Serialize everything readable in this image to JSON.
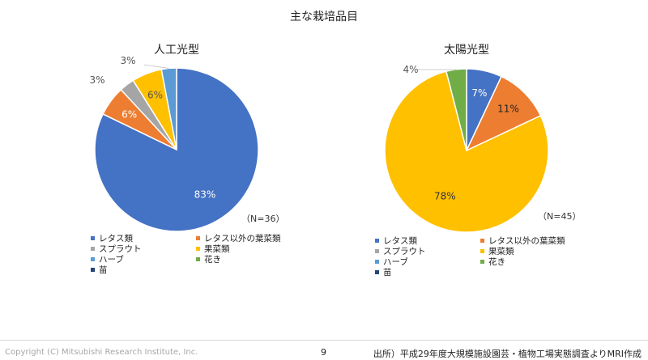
{
  "title": "主な栽培品目",
  "chart_data": [
    {
      "type": "pie",
      "title": "人工光型",
      "note": "（N=36）",
      "slices": [
        {
          "name": "レタス類",
          "value": 83,
          "label": "83%",
          "color": "#4472C4"
        },
        {
          "name": "レタス以外の葉菜類",
          "value": 6,
          "label": "6%",
          "color": "#ED7D31"
        },
        {
          "name": "スプラウト",
          "value": 3,
          "label": "3%",
          "color": "#A5A5A5"
        },
        {
          "name": "果菜類",
          "value": 6,
          "label": "6%",
          "color": "#FFC000"
        },
        {
          "name": "ハーブ",
          "value": 3,
          "label": "3%",
          "color": "#5B9BD5"
        },
        {
          "name": "花き",
          "value": 0,
          "label": "",
          "color": "#70AD47"
        },
        {
          "name": "苗",
          "value": 0,
          "label": "",
          "color": "#264478"
        }
      ]
    },
    {
      "type": "pie",
      "title": "太陽光型",
      "note": "（N=45）",
      "slices": [
        {
          "name": "レタス類",
          "value": 7,
          "label": "7%",
          "color": "#4472C4"
        },
        {
          "name": "レタス以外の葉菜類",
          "value": 11,
          "label": "11%",
          "color": "#ED7D31"
        },
        {
          "name": "スプラウト",
          "value": 0,
          "label": "",
          "color": "#A5A5A5"
        },
        {
          "name": "果菜類",
          "value": 78,
          "label": "78%",
          "color": "#FFC000"
        },
        {
          "name": "ハーブ",
          "value": 0,
          "label": "",
          "color": "#5B9BD5"
        },
        {
          "name": "花き",
          "value": 4,
          "label": "4%",
          "color": "#70AD47"
        },
        {
          "name": "苗",
          "value": 0,
          "label": "",
          "color": "#264478"
        }
      ]
    }
  ],
  "footer": {
    "copyright": "Copyright (C) Mitsubishi Research Institute, Inc.",
    "page": "9",
    "source": "出所）平成29年度大規模施設園芸・植物工場実態調査よりMRI作成"
  }
}
